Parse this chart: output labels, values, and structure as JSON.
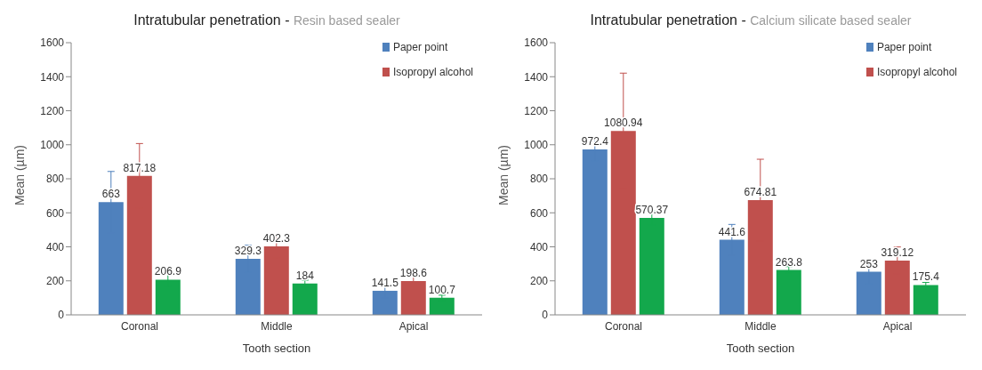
{
  "chart_data": [
    {
      "type": "bar",
      "title": "Intratubular penetration -",
      "subtitle": "Resin based sealer",
      "xlabel": "Tooth section",
      "ylabel": "Mean (µm)",
      "categories": [
        "Coronal",
        "Middle",
        "Apical"
      ],
      "ylim": [
        0,
        1600
      ],
      "yticks": [
        0,
        200,
        400,
        600,
        800,
        1000,
        1200,
        1400,
        1600
      ],
      "legend": "top right",
      "data_labels": true,
      "series": [
        {
          "name": "Paper point",
          "color": "#4f81bd",
          "values": [
            663,
            329.3,
            141.5
          ],
          "errors": [
            180,
            80,
            40
          ]
        },
        {
          "name": "Isopropyl alcohol",
          "color": "#c0504d",
          "values": [
            817.18,
            402.3,
            198.6
          ],
          "errors": [
            190,
            70,
            30
          ]
        },
        {
          "color": "#13a84c",
          "values": [
            206.9,
            184,
            100.7
          ],
          "errors": [
            40,
            20,
            15
          ]
        }
      ]
    },
    {
      "type": "bar",
      "title": "Intratubular penetration -",
      "subtitle": "Calcium silicate based sealer",
      "xlabel": "Tooth section",
      "ylabel": "Mean (µm)",
      "categories": [
        "Coronal",
        "Middle",
        "Apical"
      ],
      "ylim": [
        0,
        1600
      ],
      "yticks": [
        0,
        200,
        400,
        600,
        800,
        1000,
        1200,
        1400,
        1600
      ],
      "legend": "top right",
      "data_labels": true,
      "series": [
        {
          "name": "Paper point",
          "color": "#4f81bd",
          "values": [
            972.4,
            441.6,
            253
          ],
          "errors": [
            70,
            90,
            70
          ]
        },
        {
          "name": "Isopropyl alcohol",
          "color": "#c0504d",
          "values": [
            1080.94,
            674.81,
            319.12
          ],
          "errors": [
            340,
            240,
            80
          ]
        },
        {
          "color": "#13a84c",
          "values": [
            570.37,
            263.8,
            175.4
          ],
          "errors": [
            40,
            20,
            15
          ]
        }
      ]
    }
  ]
}
